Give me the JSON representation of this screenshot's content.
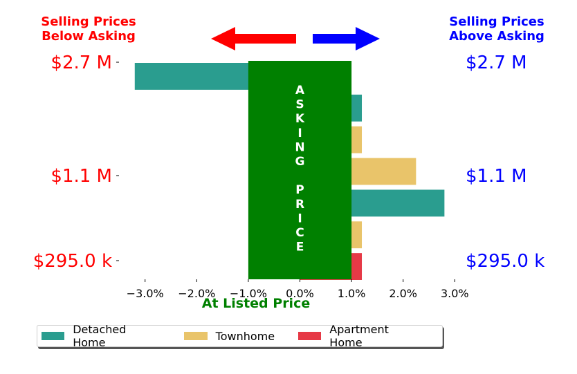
{
  "header": {
    "left_line1": "Selling Prices",
    "left_line2": "Below Asking",
    "right_line1": "Selling Prices",
    "right_line2": "Above Asking"
  },
  "colors": {
    "below": "#ff0000",
    "above": "#0000ff",
    "center_box": "#008000",
    "detached": "#2a9d8f",
    "townhome": "#e9c46a",
    "apartment": "#e63946"
  },
  "center_box": {
    "letters_top": [
      "A",
      "S",
      "K",
      "I",
      "N",
      "G"
    ],
    "letters_bottom": [
      "P",
      "R",
      "I",
      "C",
      "E"
    ]
  },
  "legend": [
    {
      "label": "Detached Home",
      "color": "#2a9d8f"
    },
    {
      "label": "Townhome",
      "color": "#e9c46a"
    },
    {
      "label": "Apartment Home",
      "color": "#e63946"
    }
  ],
  "chart_data": {
    "type": "bar",
    "orientation": "horizontal",
    "title": "",
    "xlabel": "At Listed Price",
    "xlim": [
      -3.5,
      3.1
    ],
    "xticks": [
      "−3.0%",
      "−2.0%",
      "−1.0%",
      "0.0%",
      "1.0%",
      "2.0%",
      "3.0%"
    ],
    "xtick_values": [
      -3,
      -2,
      -1,
      0,
      1,
      2,
      3
    ],
    "y_tick_labels": [
      "$2.7 M",
      "$1.1 M",
      "$295.0 k"
    ],
    "y_tick_slots": [
      0,
      4,
      7
    ],
    "asking_box_range": [
      -1.0,
      1.0
    ],
    "bars": [
      {
        "category": "Detached Home",
        "value": -3.2
      },
      {
        "category": "Detached Home",
        "value": 1.2
      },
      {
        "category": "Townhome",
        "value": 1.2
      },
      {
        "category": "Townhome",
        "value": 2.25
      },
      {
        "category": "Detached Home",
        "value": 2.8
      },
      {
        "category": "Townhome",
        "value": 1.2
      },
      {
        "category": "Apartment Home",
        "value": 1.2
      }
    ]
  }
}
